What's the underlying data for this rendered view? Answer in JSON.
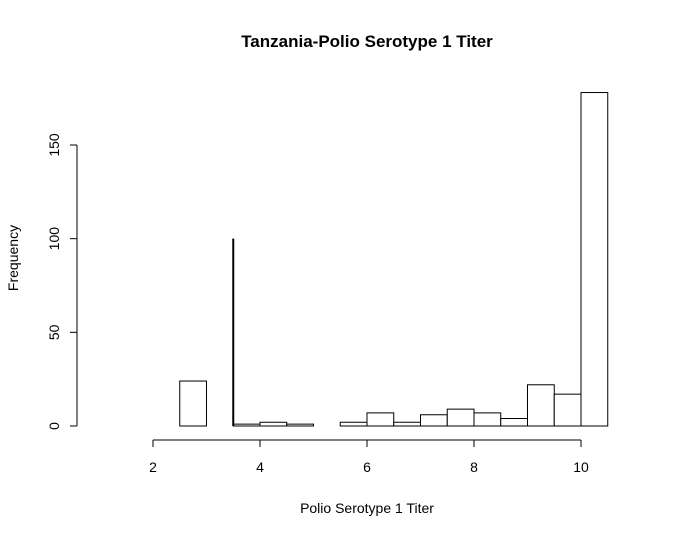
{
  "chart_data": {
    "type": "bar",
    "title": "Tanzania-Polio Serotype 1 Titer",
    "xlabel": "Polio Serotype 1 Titer",
    "ylabel": "Frequency",
    "xlim": [
      1.5,
      10.5
    ],
    "ylim": [
      0,
      180
    ],
    "xticks": [
      2,
      4,
      6,
      8,
      10
    ],
    "yticks": [
      0,
      50,
      100,
      150
    ],
    "bin_width": 0.5,
    "bins": [
      {
        "start": 2.5,
        "end": 3.0,
        "count": 24
      },
      {
        "start": 3.0,
        "end": 3.5,
        "count": 0
      },
      {
        "start": 3.5,
        "end": 4.0,
        "count": 1
      },
      {
        "start": 4.0,
        "end": 4.5,
        "count": 2
      },
      {
        "start": 4.5,
        "end": 5.0,
        "count": 1
      },
      {
        "start": 5.0,
        "end": 5.5,
        "count": 0
      },
      {
        "start": 5.5,
        "end": 6.0,
        "count": 2
      },
      {
        "start": 6.0,
        "end": 6.5,
        "count": 7
      },
      {
        "start": 6.5,
        "end": 7.0,
        "count": 2
      },
      {
        "start": 7.0,
        "end": 7.5,
        "count": 6
      },
      {
        "start": 7.5,
        "end": 8.0,
        "count": 9
      },
      {
        "start": 8.0,
        "end": 8.5,
        "count": 7
      },
      {
        "start": 8.5,
        "end": 9.0,
        "count": 4
      },
      {
        "start": 9.0,
        "end": 9.5,
        "count": 22
      },
      {
        "start": 9.5,
        "end": 10.0,
        "count": 17
      },
      {
        "start": 10.0,
        "end": 10.5,
        "count": 178
      }
    ],
    "reference_line": {
      "x": 3.5,
      "y_from": 0,
      "y_to": 100
    },
    "grid": false,
    "legend": "none"
  }
}
